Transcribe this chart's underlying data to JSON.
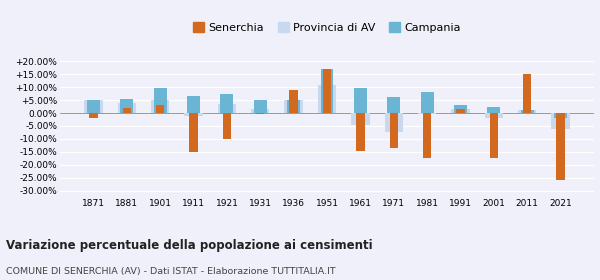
{
  "years": [
    1871,
    1881,
    1901,
    1911,
    1921,
    1931,
    1936,
    1951,
    1961,
    1971,
    1981,
    1991,
    2001,
    2011,
    2021
  ],
  "senerchia": [
    -2.0,
    2.0,
    3.0,
    -15.0,
    -10.0,
    -0.5,
    9.0,
    17.0,
    -14.5,
    -13.5,
    -17.5,
    1.5,
    -17.5,
    15.0,
    -26.0
  ],
  "provincia_av": [
    5.0,
    4.0,
    5.0,
    -1.0,
    3.5,
    1.5,
    5.0,
    11.0,
    -4.5,
    -7.5,
    -0.5,
    1.5,
    -2.0,
    1.0,
    -6.0
  ],
  "campania": [
    5.0,
    5.5,
    9.5,
    6.5,
    7.5,
    5.0,
    5.0,
    17.0,
    9.5,
    6.0,
    8.0,
    3.0,
    2.5,
    1.0,
    -2.0
  ],
  "color_senerchia": "#d2691e",
  "color_provincia": "#c8d8ee",
  "color_campania": "#6ab4d4",
  "title": "Variazione percentuale della popolazione ai censimenti",
  "subtitle": "COMUNE DI SENERCHIA (AV) - Dati ISTAT - Elaborazione TUTTITALIA.IT",
  "legend_labels": [
    "Senerchia",
    "Provincia di AV",
    "Campania"
  ],
  "ylim": [
    -32,
    22
  ],
  "yticks": [
    -30,
    -25,
    -20,
    -15,
    -10,
    -5,
    0,
    5,
    10,
    15,
    20
  ],
  "background_color": "#f0f0fa"
}
